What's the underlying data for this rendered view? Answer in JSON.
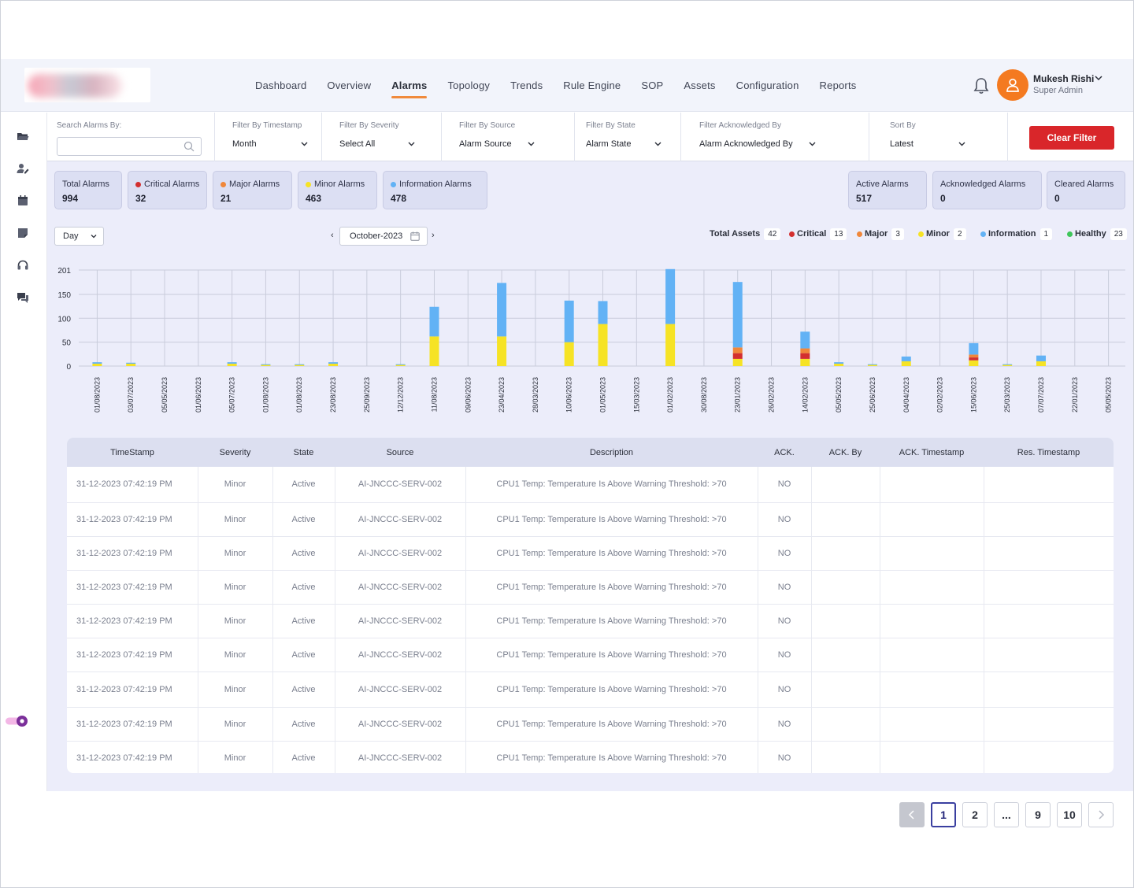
{
  "colors": {
    "critical": "#d32f2f",
    "major": "#f0873a",
    "minor": "#f6e325",
    "information": "#62b2f5",
    "healthy": "#3ec65a",
    "accent": "#f08a3c",
    "clear_filter": "#d9262a",
    "page_background": "#ecedfa"
  },
  "header": {
    "nav": [
      "Dashboard",
      "Overview",
      "Alarms",
      "Topology",
      "Trends",
      "Rule Engine",
      "SOP",
      "Assets",
      "Configuration",
      "Reports"
    ],
    "active_nav": "Alarms",
    "user": {
      "name": "Mukesh Rishi",
      "role": "Super Admin"
    },
    "icons": [
      "bell-icon",
      "user-icon",
      "chevron-down-icon"
    ]
  },
  "sidebar": {
    "icons": [
      "folder-icon",
      "user-edit-icon",
      "calendar-icon",
      "note-icon",
      "headset-icon",
      "chat-icon"
    ],
    "toggle": "theme-toggle"
  },
  "filters": {
    "search": {
      "label": "Search Alarms By:",
      "placeholder": ""
    },
    "timestamp": {
      "label": "Filter By Timestamp",
      "value": "Month"
    },
    "severity": {
      "label": "Filter By Severity",
      "value": "Select All"
    },
    "source": {
      "label": "Filter By Source",
      "value": "Alarm Source"
    },
    "state": {
      "label": "Filter By State",
      "value": "Alarm State"
    },
    "acknowledged": {
      "label": "Filter Acknowledged By",
      "value": "Alarm Acknowledged By"
    },
    "sort": {
      "label": "Sort By",
      "value": "Latest"
    },
    "clear_button": "Clear Filter"
  },
  "stats": [
    {
      "label": "Total Alarms",
      "value": "994",
      "dot": ""
    },
    {
      "label": "Critical Alarms",
      "value": "32",
      "dot": "critical"
    },
    {
      "label": "Major Alarms",
      "value": "21",
      "dot": "major"
    },
    {
      "label": "Minor Alarms",
      "value": "463",
      "dot": "minor"
    },
    {
      "label": "Information Alarms",
      "value": "478",
      "dot": "information"
    },
    {
      "label": "Active Alarms",
      "value": "517",
      "dot": ""
    },
    {
      "label": "Acknowledged Alarms",
      "value": "0",
      "dot": ""
    },
    {
      "label": "Cleared Alarms",
      "value": "0",
      "dot": ""
    }
  ],
  "chart_controls": {
    "period": "Day",
    "month": "October-2023",
    "prev": "‹",
    "next": "›"
  },
  "legend": [
    {
      "label": "Total Assets",
      "count": "42",
      "dot": ""
    },
    {
      "label": "Critical",
      "count": "13",
      "dot": "critical"
    },
    {
      "label": "Major",
      "count": "3",
      "dot": "major"
    },
    {
      "label": "Minor",
      "count": "2",
      "dot": "minor"
    },
    {
      "label": "Information",
      "count": "1",
      "dot": "information"
    },
    {
      "label": "Healthy",
      "count": "23",
      "dot": "healthy"
    }
  ],
  "chart_data": {
    "type": "bar",
    "stacked": true,
    "categories": [
      "01/08/2023",
      "03/07/2023",
      "05/05/2023",
      "01/06/2023",
      "05/07/2023",
      "01/08/2023",
      "01/08/2023",
      "23/08/2023",
      "25/09/2023",
      "12/12/2023",
      "11/08/2023",
      "09/06/2023",
      "23/04/2023",
      "28/03/2023",
      "10/06/2023",
      "01/05/2023",
      "15/03/2023",
      "01/02/2023",
      "30/08/2023",
      "23/01/2023",
      "26/02/2023",
      "14/02/2023",
      "05/05/2023",
      "25/06/2023",
      "04/04/2023",
      "02/02/2023",
      "15/06/2023",
      "25/03/2023",
      "07/07/2023",
      "22/01/2023",
      "05/05/2023"
    ],
    "yticks": [
      0,
      50,
      100,
      150,
      201
    ],
    "ylim": [
      0,
      201
    ],
    "grid": true,
    "series": [
      {
        "name": "Minor",
        "color": "minor",
        "values": [
          5,
          5,
          0,
          0,
          5,
          3,
          3,
          5,
          0,
          3,
          62,
          0,
          62,
          0,
          50,
          88,
          0,
          88,
          0,
          15,
          0,
          15,
          5,
          3,
          10,
          0,
          12,
          3,
          10,
          0,
          0
        ]
      },
      {
        "name": "Critical",
        "color": "critical",
        "values": [
          0,
          0,
          0,
          0,
          0,
          0,
          0,
          0,
          0,
          0,
          0,
          0,
          0,
          0,
          0,
          0,
          0,
          0,
          0,
          12,
          0,
          12,
          0,
          0,
          0,
          0,
          6,
          0,
          0,
          0,
          0
        ]
      },
      {
        "name": "Major",
        "color": "major",
        "values": [
          0,
          0,
          0,
          0,
          0,
          0,
          0,
          0,
          0,
          0,
          0,
          0,
          0,
          0,
          0,
          0,
          0,
          0,
          0,
          12,
          0,
          10,
          0,
          0,
          0,
          0,
          6,
          0,
          0,
          0,
          0
        ]
      },
      {
        "name": "Information",
        "color": "information",
        "values": [
          3,
          2,
          0,
          0,
          3,
          1,
          1,
          3,
          0,
          1,
          62,
          0,
          112,
          0,
          87,
          48,
          0,
          115,
          0,
          137,
          0,
          35,
          3,
          1,
          10,
          0,
          24,
          1,
          12,
          0,
          0
        ]
      }
    ]
  },
  "table": {
    "columns": [
      "TimeStamp",
      "Severity",
      "State",
      "Source",
      "Description",
      "ACK.",
      "ACK. By",
      "ACK. Timestamp",
      "Res. Timestamp"
    ],
    "rows": [
      [
        "31-12-2023 07:42:19 PM",
        "Minor",
        "Active",
        "AI-JNCCC-SERV-002",
        "CPU1 Temp: Temperature Is Above Warning Threshold: >70",
        "NO",
        "",
        "",
        ""
      ],
      [
        "31-12-2023 07:42:19 PM",
        "Minor",
        "Active",
        "AI-JNCCC-SERV-002",
        "CPU1 Temp: Temperature Is Above Warning Threshold: >70",
        "NO",
        "",
        "",
        ""
      ],
      [
        "31-12-2023 07:42:19 PM",
        "Minor",
        "Active",
        "AI-JNCCC-SERV-002",
        "CPU1 Temp: Temperature Is Above Warning Threshold: >70",
        "NO",
        "",
        "",
        ""
      ],
      [
        "31-12-2023 07:42:19 PM",
        "Minor",
        "Active",
        "AI-JNCCC-SERV-002",
        "CPU1 Temp: Temperature Is Above Warning Threshold: >70",
        "NO",
        "",
        "",
        ""
      ],
      [
        "31-12-2023 07:42:19 PM",
        "Minor",
        "Active",
        "AI-JNCCC-SERV-002",
        "CPU1 Temp: Temperature Is Above Warning Threshold: >70",
        "NO",
        "",
        "",
        ""
      ],
      [
        "31-12-2023 07:42:19 PM",
        "Minor",
        "Active",
        "AI-JNCCC-SERV-002",
        "CPU1 Temp: Temperature Is Above Warning Threshold: >70",
        "NO",
        "",
        "",
        ""
      ],
      [
        "31-12-2023 07:42:19 PM",
        "Minor",
        "Active",
        "AI-JNCCC-SERV-002",
        "CPU1 Temp: Temperature Is Above Warning Threshold: >70",
        "NO",
        "",
        "",
        ""
      ],
      [
        "31-12-2023 07:42:19 PM",
        "Minor",
        "Active",
        "AI-JNCCC-SERV-002",
        "CPU1 Temp: Temperature Is Above Warning Threshold: >70",
        "NO",
        "",
        "",
        ""
      ],
      [
        "31-12-2023 07:42:19 PM",
        "Minor",
        "Active",
        "AI-JNCCC-SERV-002",
        "CPU1 Temp: Temperature Is Above Warning Threshold: >70",
        "NO",
        "",
        "",
        ""
      ]
    ]
  },
  "pagination": {
    "pages": [
      "1",
      "2",
      "...",
      "9",
      "10"
    ],
    "current": "1"
  }
}
